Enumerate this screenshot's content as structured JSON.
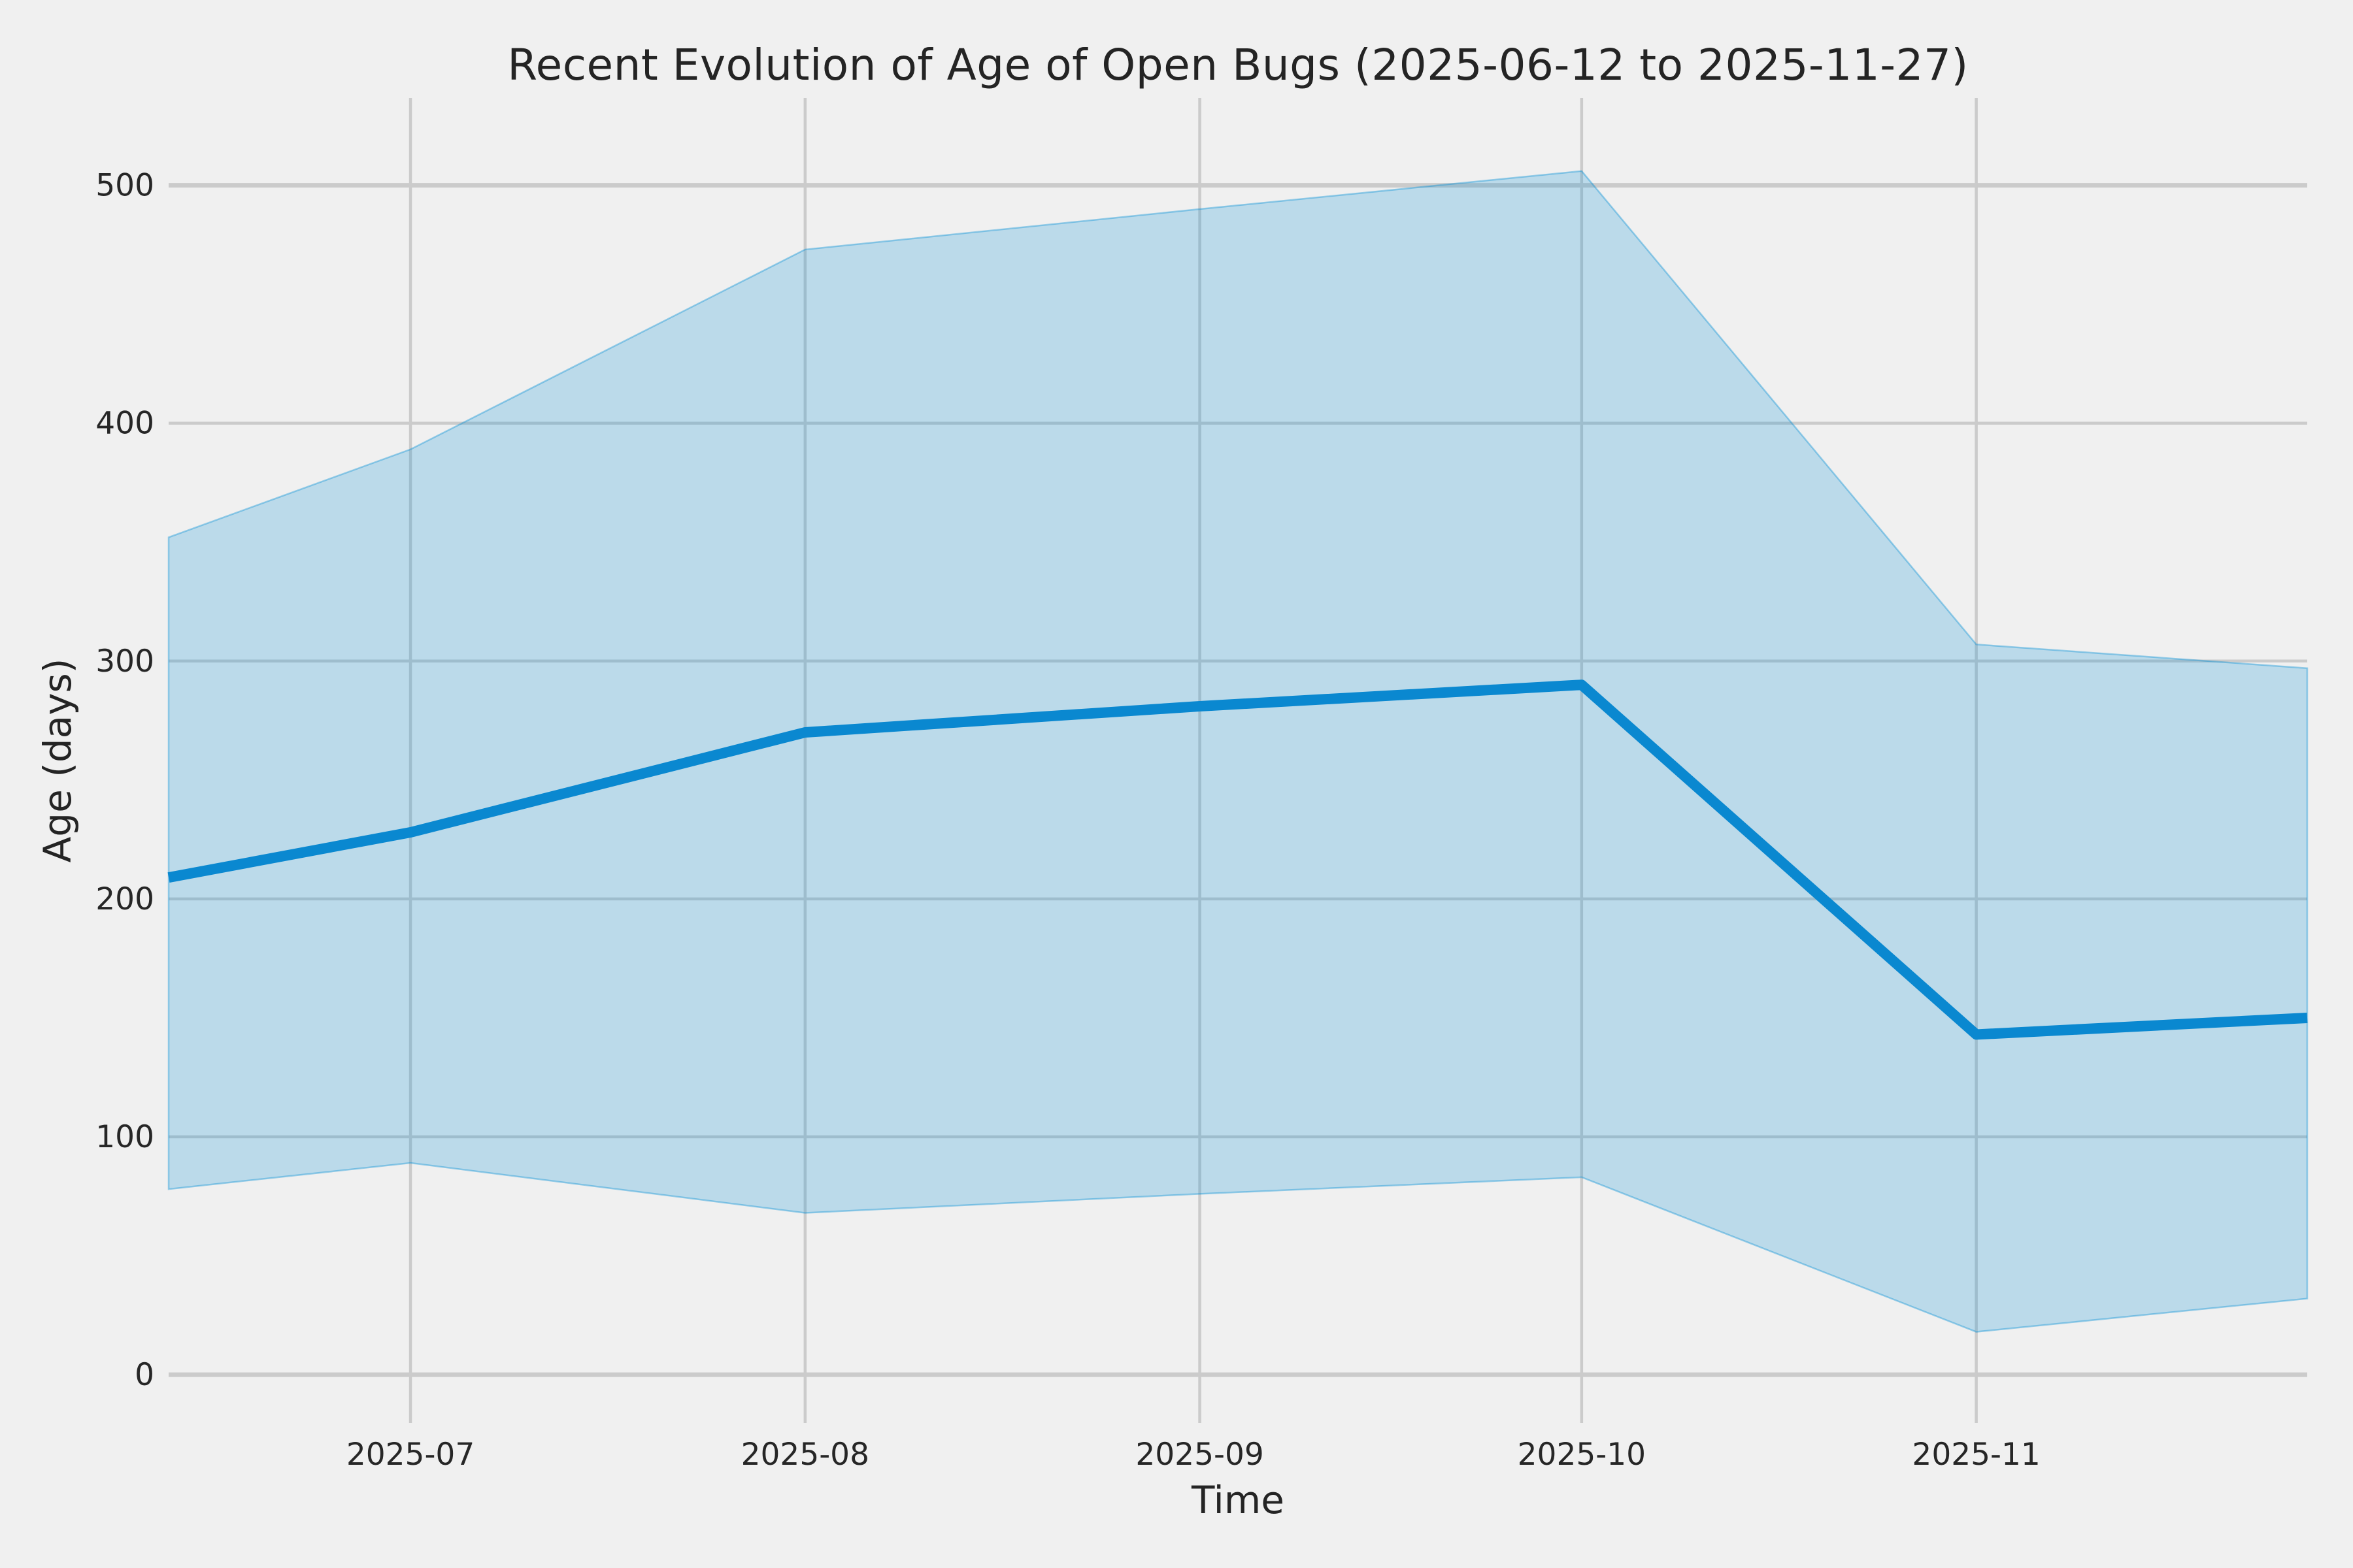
{
  "figure": {
    "title": "Recent Evolution of Age of Open Bugs (2025-06-12 to 2025-11-27)",
    "background_color": "#f0f0f0",
    "grid_color": "#cbcbcb",
    "text_color": "#262626"
  },
  "chart_data": {
    "type": "line",
    "title": "Recent Evolution of Age of Open Bugs (2025-06-12 to 2025-11-27)",
    "xlabel": "Time",
    "ylabel": "Age (days)",
    "x_dates": [
      "2025-06-12",
      "2025-07-01",
      "2025-08-01",
      "2025-09-01",
      "2025-10-01",
      "2025-11-01",
      "2025-11-27"
    ],
    "x_days": [
      0,
      19,
      50,
      81,
      111,
      142,
      168
    ],
    "series": [
      {
        "name": "median_age",
        "values": [
          209,
          228,
          270,
          281,
          290,
          143,
          150
        ],
        "color": "#0a88d0",
        "line_width": 16
      },
      {
        "name": "band_upper",
        "values": [
          352,
          389,
          473,
          490,
          506,
          307,
          297
        ],
        "color": "#008fd5"
      },
      {
        "name": "band_lower",
        "values": [
          78,
          89,
          68,
          76,
          83,
          18,
          32
        ],
        "color": "#008fd5"
      }
    ],
    "band_fill_color": "#008fd5",
    "band_fill_alpha": 0.22,
    "xticks": {
      "labels": [
        "2025-07",
        "2025-08",
        "2025-09",
        "2025-10",
        "2025-11"
      ],
      "days": [
        19,
        50,
        81,
        111,
        142
      ]
    },
    "yticks": [
      0,
      100,
      200,
      300,
      400,
      500
    ],
    "ylim": [
      -20.3,
      536.7
    ],
    "xlim_days": [
      0,
      168
    ],
    "grid": true,
    "legend": "none"
  }
}
